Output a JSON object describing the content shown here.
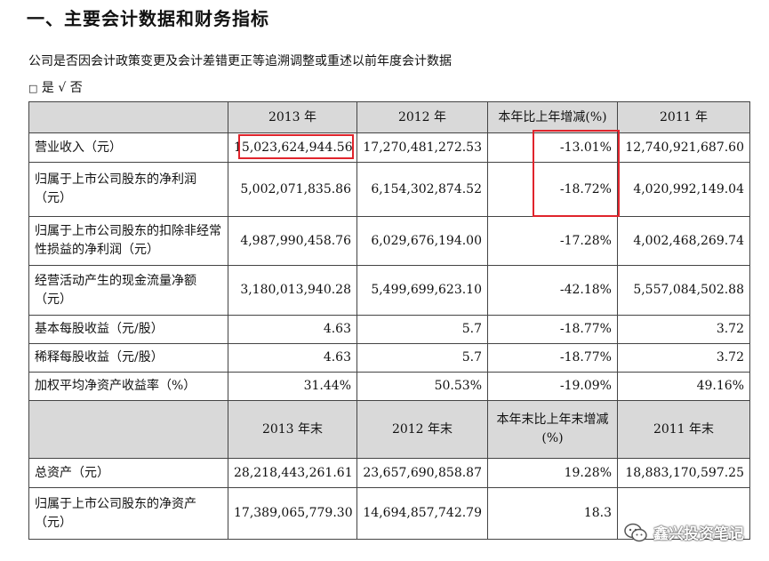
{
  "section_title": "一、主要会计数据和财务指标",
  "description": "公司是否因会计政策变更及会计差错更正等追溯调整或重述以前年度会计数据",
  "option": {
    "box": "□",
    "yes": "是",
    "check": "√",
    "no": "否"
  },
  "header1": {
    "col2013": "2013 年",
    "col2012": "2012 年",
    "change": "本年比上年增减(%)",
    "col2011": "2011 年"
  },
  "rows1": [
    {
      "label": "营业收入（元）",
      "v2013": "15,023,624,944.56",
      "v2012": "17,270,481,272.53",
      "change": "-13.01%",
      "v2011": "12,740,921,687.60"
    },
    {
      "label": "归属于上市公司股东的净利润（元）",
      "v2013": "5,002,071,835.86",
      "v2012": "6,154,302,874.52",
      "change": "-18.72%",
      "v2011": "4,020,992,149.04"
    },
    {
      "label": "归属于上市公司股东的扣除非经常性损益的净利润（元）",
      "v2013": "4,987,990,458.76",
      "v2012": "6,029,676,194.00",
      "change": "-17.28%",
      "v2011": "4,002,468,269.74"
    },
    {
      "label": "经营活动产生的现金流量净额（元）",
      "v2013": "3,180,013,940.28",
      "v2012": "5,499,699,623.10",
      "change": "-42.18%",
      "v2011": "5,557,084,502.88"
    },
    {
      "label": "基本每股收益（元/股）",
      "v2013": "4.63",
      "v2012": "5.7",
      "change": "-18.77%",
      "v2011": "3.72"
    },
    {
      "label": "稀释每股收益（元/股）",
      "v2013": "4.63",
      "v2012": "5.7",
      "change": "-18.77%",
      "v2011": "3.72"
    },
    {
      "label": "加权平均净资产收益率（%）",
      "v2013": "31.44%",
      "v2012": "50.53%",
      "change": "-19.09%",
      "v2011": "49.16%"
    }
  ],
  "header2": {
    "col2013": "2013 年末",
    "col2012": "2012 年末",
    "change": "本年末比上年末增减(%)",
    "col2011": "2011 年末"
  },
  "rows2": [
    {
      "label": "总资产（元）",
      "v2013": "28,218,443,261.61",
      "v2012": "23,657,690,858.87",
      "change": "19.28%",
      "v2011": "18,883,170,597.25"
    },
    {
      "label": "归属于上市公司股东的净资产（元）",
      "v2013": "17,389,065,779.30",
      "v2012": "14,694,857,742.79",
      "change": "18.3",
      "v2011": ""
    }
  ],
  "watermark": "鑫兴投资笔记",
  "colors": {
    "highlight": "#e0242c",
    "header_bg": "#d9d9d9"
  }
}
